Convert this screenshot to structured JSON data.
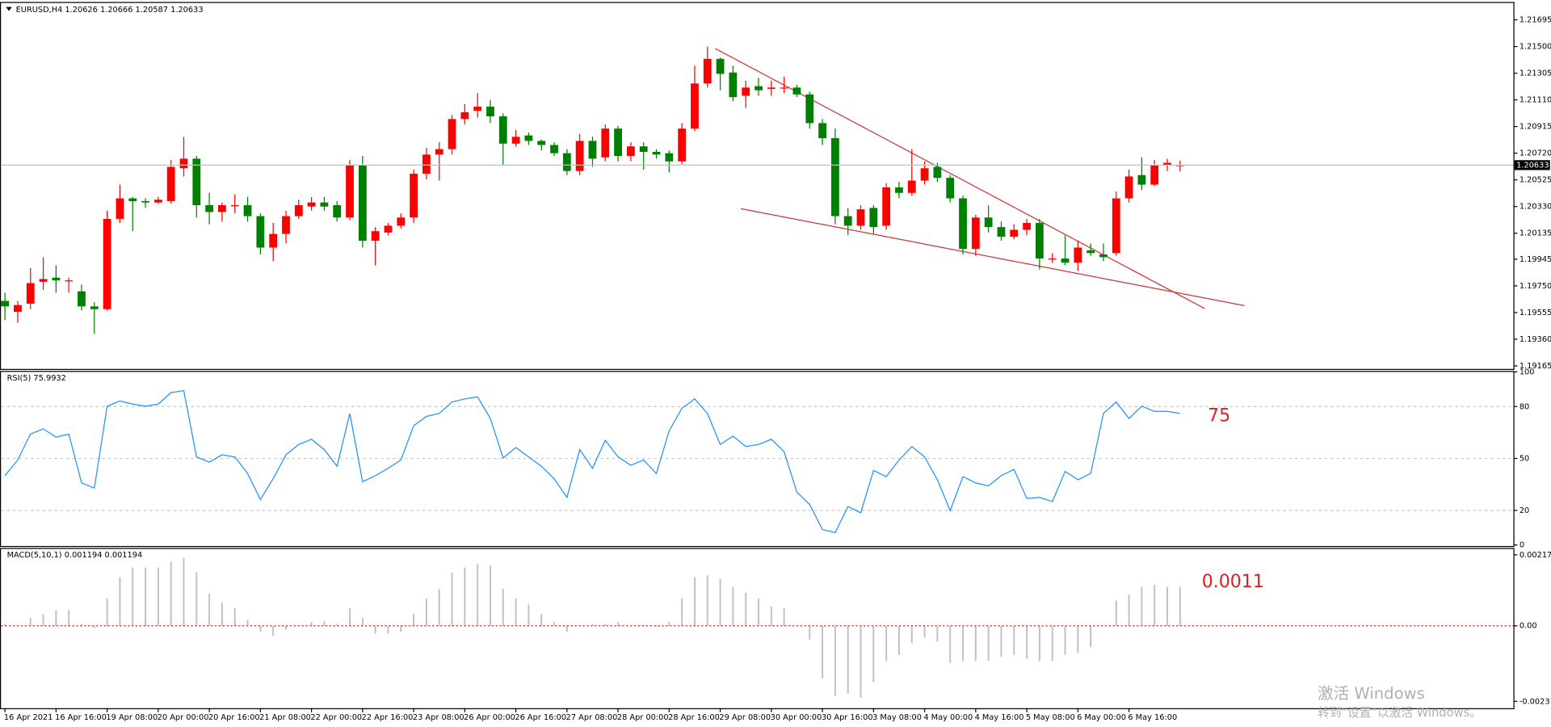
{
  "chart_data": [
    {
      "type": "candlestick",
      "title": "EURUSD,H4",
      "categories": [
        "16 Apr 2021",
        null,
        null,
        null,
        "16 Apr 16:00",
        null,
        null,
        null,
        "19 Apr 08:00",
        null,
        null,
        null,
        "20 Apr 00:00",
        null,
        null,
        null,
        "20 Apr 16:00",
        null,
        null,
        null,
        "21 Apr 08:00",
        null,
        null,
        null,
        "22 Apr 00:00",
        null,
        null,
        null,
        "22 Apr 16:00",
        null,
        null,
        null,
        "23 Apr 08:00",
        null,
        null,
        null,
        "26 Apr 00:00",
        null,
        null,
        null,
        "26 Apr 16:00",
        null,
        null,
        null,
        "27 Apr 08:00",
        null,
        null,
        null,
        "28 Apr 00:00",
        null,
        null,
        null,
        "28 Apr 16:00",
        null,
        null,
        null,
        "29 Apr 08:00",
        null,
        null,
        null,
        "30 Apr 00:00",
        null,
        null,
        null,
        "30 Apr 16:00",
        null,
        null,
        null,
        "3 May 08:00",
        null,
        null,
        null,
        "4 May 00:00",
        null,
        null,
        null,
        "4 May 16:00",
        null,
        null,
        null,
        "5 May 08:00",
        null,
        null,
        null,
        "6 May 00:00",
        null,
        null,
        null,
        "6 May 16:00",
        null,
        null,
        null,
        null
      ],
      "ohlc": [
        [
          1.1964,
          1.197,
          1.195,
          1.196
        ],
        [
          1.1956,
          1.1964,
          1.1948,
          1.1961
        ],
        [
          1.1962,
          1.1988,
          1.1958,
          1.1977
        ],
        [
          1.1978,
          1.1996,
          1.1972,
          1.198
        ],
        [
          1.1981,
          1.199,
          1.197,
          1.1979
        ],
        [
          1.1979,
          1.1981,
          1.197,
          1.1979
        ],
        [
          1.1971,
          1.1976,
          1.1957,
          1.196
        ],
        [
          1.196,
          1.1963,
          1.194,
          1.1958
        ],
        [
          1.1958,
          1.203,
          1.1957,
          1.2024
        ],
        [
          1.2024,
          1.2049,
          1.2021,
          1.2039
        ],
        [
          1.2039,
          1.204,
          1.2015,
          1.2037
        ],
        [
          1.2037,
          1.2039,
          1.2032,
          1.2036
        ],
        [
          1.2036,
          1.204,
          1.2035,
          1.2038
        ],
        [
          1.2037,
          1.2067,
          1.2035,
          1.2062
        ],
        [
          1.2061,
          1.2084,
          1.2055,
          1.2068
        ],
        [
          1.2068,
          1.207,
          1.2025,
          1.2034
        ],
        [
          1.2034,
          1.2043,
          1.202,
          1.2029
        ],
        [
          1.2029,
          1.2036,
          1.2022,
          1.2034
        ],
        [
          1.2034,
          1.2042,
          1.2028,
          1.2034
        ],
        [
          1.2034,
          1.204,
          1.2022,
          1.2026
        ],
        [
          1.2026,
          1.2028,
          1.1998,
          1.2003
        ],
        [
          1.2003,
          1.2021,
          1.1993,
          1.2013
        ],
        [
          1.2013,
          1.203,
          1.2006,
          1.2026
        ],
        [
          1.2026,
          1.2038,
          1.2024,
          1.2034
        ],
        [
          1.2033,
          1.204,
          1.203,
          1.2036
        ],
        [
          1.2036,
          1.204,
          1.203,
          1.2033
        ],
        [
          1.2034,
          1.2037,
          1.2022,
          1.2025
        ],
        [
          1.2025,
          1.2067,
          1.2023,
          1.2063
        ],
        [
          1.2063,
          1.207,
          1.2003,
          1.2008
        ],
        [
          1.2008,
          1.2018,
          1.199,
          1.2015
        ],
        [
          1.2014,
          1.2021,
          1.2012,
          1.2019
        ],
        [
          1.2019,
          1.2028,
          1.2017,
          1.2025
        ],
        [
          1.2025,
          1.206,
          1.2021,
          1.2057
        ],
        [
          1.2057,
          1.2076,
          1.2053,
          1.2071
        ],
        [
          1.2071,
          1.208,
          1.2052,
          1.2075
        ],
        [
          1.2075,
          1.21,
          1.2071,
          1.2097
        ],
        [
          1.2097,
          1.2108,
          1.2093,
          1.2102
        ],
        [
          1.2103,
          1.2116,
          1.2098,
          1.2106
        ],
        [
          1.2106,
          1.2111,
          1.2094,
          1.2099
        ],
        [
          1.2099,
          1.2101,
          1.2063,
          1.2079
        ],
        [
          1.2079,
          1.2089,
          1.2077,
          1.2084
        ],
        [
          1.2085,
          1.2087,
          1.2078,
          1.2081
        ],
        [
          1.2081,
          1.2082,
          1.2074,
          1.2078
        ],
        [
          1.2078,
          1.208,
          1.207,
          1.2072
        ],
        [
          1.2072,
          1.2075,
          1.2056,
          1.2059
        ],
        [
          1.2059,
          1.2086,
          1.2056,
          1.2081
        ],
        [
          1.2081,
          1.2084,
          1.2062,
          1.2068
        ],
        [
          1.2069,
          1.2093,
          1.2066,
          1.209
        ],
        [
          1.209,
          1.2092,
          1.2066,
          1.207
        ],
        [
          1.207,
          1.208,
          1.2066,
          1.2077
        ],
        [
          1.2077,
          1.208,
          1.206,
          1.2073
        ],
        [
          1.2073,
          1.2075,
          1.2068,
          1.2071
        ],
        [
          1.2072,
          1.2074,
          1.2058,
          1.2066
        ],
        [
          1.2066,
          1.2094,
          1.2064,
          1.209
        ],
        [
          1.209,
          1.2136,
          1.2088,
          1.2123
        ],
        [
          1.2123,
          1.215,
          1.212,
          1.2141
        ],
        [
          1.2141,
          1.2142,
          1.2118,
          1.213
        ],
        [
          1.2131,
          1.2136,
          1.211,
          1.2113
        ],
        [
          1.2114,
          1.2125,
          1.2105,
          1.212
        ],
        [
          1.2121,
          1.2127,
          1.2114,
          1.2118
        ],
        [
          1.2119,
          1.2125,
          1.2114,
          1.212
        ],
        [
          1.212,
          1.2128,
          1.2116,
          1.212
        ],
        [
          1.212,
          1.2122,
          1.2113,
          1.2115
        ],
        [
          1.2115,
          1.2117,
          1.209,
          1.2094
        ],
        [
          1.2094,
          1.2097,
          1.2078,
          1.2083
        ],
        [
          1.2083,
          1.209,
          1.202,
          1.2026
        ],
        [
          1.2026,
          1.2032,
          1.2012,
          1.2019
        ],
        [
          1.2019,
          1.2034,
          1.2016,
          1.2031
        ],
        [
          1.2032,
          1.2034,
          1.2013,
          1.2018
        ],
        [
          1.2019,
          1.205,
          1.2016,
          1.2047
        ],
        [
          1.2047,
          1.2051,
          1.2039,
          1.2043
        ],
        [
          1.2043,
          1.2075,
          1.2041,
          1.2052
        ],
        [
          1.2052,
          1.2066,
          1.2049,
          1.2061
        ],
        [
          1.2062,
          1.2065,
          1.2051,
          1.2054
        ],
        [
          1.2054,
          1.2056,
          1.2036,
          1.2039
        ],
        [
          1.2039,
          1.2041,
          1.1998,
          1.2002
        ],
        [
          1.2002,
          1.2027,
          1.1997,
          1.2025
        ],
        [
          1.2025,
          1.2034,
          1.2014,
          1.2018
        ],
        [
          1.2018,
          1.2022,
          1.2008,
          1.2011
        ],
        [
          1.2011,
          1.202,
          1.2009,
          1.2016
        ],
        [
          1.2016,
          1.2024,
          1.2012,
          1.2021
        ],
        [
          1.2021,
          1.2024,
          1.1987,
          1.1995
        ],
        [
          1.1995,
          1.1999,
          1.1992,
          1.1995
        ],
        [
          1.1995,
          1.2012,
          1.199,
          1.1992
        ],
        [
          1.1992,
          1.2008,
          1.1986,
          1.2003
        ],
        [
          1.2001,
          1.2006,
          1.1997,
          1.1999
        ],
        [
          1.1998,
          1.2006,
          1.1993,
          1.1996
        ],
        [
          1.1999,
          1.2044,
          1.1997,
          1.2039
        ],
        [
          1.2039,
          1.206,
          1.2036,
          1.2055
        ],
        [
          1.2056,
          1.2069,
          1.2045,
          1.2049
        ],
        [
          1.2049,
          1.2067,
          1.2048,
          1.2063
        ],
        [
          1.2063,
          1.2068,
          1.2059,
          1.2065
        ],
        [
          1.20626,
          1.20666,
          1.20587,
          1.20633
        ]
      ],
      "up_color": "#ff0000",
      "down_color": "#008000",
      "ylim": [
        1.1915,
        1.21804
      ],
      "yticks": [
        1.21695,
        {
          "value": 1.215,
          "label": "1.21500"
        },
        1.21305,
        {
          "value": 1.2111,
          "label": "1.21110"
        },
        1.20915,
        {
          "value": 1.2072,
          "label": "1.20720"
        },
        1.20525,
        {
          "value": 1.2033,
          "label": "1.20330"
        },
        1.20135,
        1.19945,
        {
          "value": 1.1975,
          "label": "1.19750"
        },
        1.19555,
        {
          "value": 1.1936,
          "label": "1.19360"
        },
        1.19165
      ]
    },
    {
      "type": "line",
      "title": "RSI(5)",
      "color": "#1e90ff",
      "annotation": "75",
      "values": [
        40.1,
        49.1,
        64.1,
        67.1,
        62.3,
        64.1,
        35.9,
        32.9,
        80.2,
        83.2,
        81.4,
        80.2,
        81.4,
        88.0,
        89.2,
        50.9,
        47.9,
        52.1,
        50.9,
        41.3,
        26.3,
        38.3,
        52.1,
        58.1,
        61.1,
        55.1,
        45.5,
        76.0,
        36.5,
        40.1,
        44.3,
        49.1,
        68.9,
        74.3,
        76.0,
        82.6,
        84.4,
        85.6,
        73.1,
        50.3,
        56.3,
        50.9,
        45.5,
        38.3,
        27.5,
        55.1,
        44.3,
        60.5,
        50.9,
        46.1,
        49.1,
        41.3,
        65.9,
        79.0,
        84.4,
        76.0,
        58.1,
        62.9,
        56.9,
        58.1,
        61.1,
        53.9,
        30.5,
        23.4,
        9.0,
        7.2,
        22.2,
        18.6,
        43.1,
        39.5,
        49.1,
        56.9,
        50.9,
        37.7,
        19.8,
        39.5,
        35.9,
        34.1,
        40.1,
        43.7,
        26.9,
        27.5,
        25.1,
        42.5,
        37.7,
        41.3,
        76.0,
        82.6,
        73.1,
        80.2,
        77.2,
        77.2,
        75.9932
      ],
      "ylim": [
        0,
        100
      ],
      "yticks": [
        0,
        20,
        50,
        80,
        100
      ],
      "grid": true
    },
    {
      "type": "bar",
      "title": "MACD(5,10,1)",
      "color": "#c0c0c0",
      "zero_color": "#e03030",
      "annotation": "0.0011",
      "signal": 0.001194,
      "values": [
        6e-05,
        0,
        0.00024,
        0.00036,
        0.00048,
        0.00048,
        6e-05,
        -6e-05,
        0.00083,
        0.00149,
        0.00178,
        0.00178,
        0.00178,
        0.00196,
        0.00208,
        0.00163,
        0.00098,
        0.00071,
        0.00053,
        0.00018,
        -0.00018,
        -0.0003,
        -0.00012,
        0,
        0.00012,
        0.00015,
        6e-05,
        0.00053,
        0.00024,
        -0.00024,
        -0.00024,
        -0.00018,
        0.00036,
        0.00083,
        0.00113,
        0.00163,
        0.00178,
        0.0019,
        0.00184,
        0.00113,
        0.00083,
        0.00065,
        0.00036,
        0.00012,
        -0.00018,
        0,
        6e-05,
        6e-05,
        0.00012,
        0,
        -3e-05,
        -3e-05,
        0.00012,
        0.00083,
        0.00149,
        0.00154,
        0.00143,
        0.00119,
        0.00101,
        0.00083,
        0.00059,
        0.00053,
        0,
        -0.00042,
        -0.0016,
        -0.00214,
        -0.00208,
        -0.0022,
        -0.00172,
        -0.00107,
        -0.00089,
        -0.00053,
        -0.00036,
        -0.00048,
        -0.00113,
        -0.00107,
        -0.00107,
        -0.00107,
        -0.00095,
        -0.00089,
        -0.00101,
        -0.00107,
        -0.00107,
        -0.00089,
        -0.00083,
        -0.00065,
        0,
        0.00077,
        0.00095,
        0.00119,
        0.00125,
        0.00119,
        0.001194
      ],
      "ylim": [
        -0.00246,
        0.00229
      ],
      "yticks": [
        0.002171,
        {
          "value": 0,
          "label": "0.00"
        },
        -0.002311
      ]
    }
  ],
  "watermark": {
    "line1": "激活 Windows",
    "line2": "转到“设置”以激活 Windows。"
  }
}
